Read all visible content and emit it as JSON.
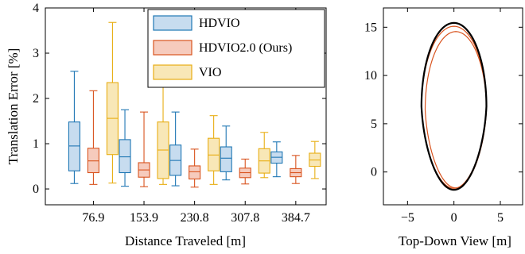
{
  "chart_data": [
    {
      "type": "box",
      "title": "",
      "xlabel": "Distance Traveled [m]",
      "ylabel": "Translation Error [%]",
      "ylim": [
        -0.35,
        4.0
      ],
      "yticks": [
        "0",
        "1",
        "2",
        "3",
        "4"
      ],
      "yticks_values": [
        0,
        1,
        2,
        3,
        4
      ],
      "categories": [
        "76.9",
        "153.9",
        "230.8",
        "307.8",
        "384.7"
      ],
      "legend_position": "top-right",
      "grid": false,
      "series": [
        {
          "name": "HDVIO",
          "color": "#1f77b4",
          "fill": "#c7dcef",
          "boxes": [
            {
              "min": 0.12,
              "q1": 0.4,
              "median": 0.95,
              "q3": 1.48,
              "max": 2.6
            },
            {
              "min": 0.06,
              "q1": 0.36,
              "median": 0.71,
              "q3": 1.09,
              "max": 1.75
            },
            {
              "min": 0.07,
              "q1": 0.3,
              "median": 0.63,
              "q3": 0.97,
              "max": 1.7
            },
            {
              "min": 0.2,
              "q1": 0.38,
              "median": 0.68,
              "q3": 0.93,
              "max": 1.39
            },
            {
              "min": 0.27,
              "q1": 0.57,
              "median": 0.7,
              "q3": 0.82,
              "max": 1.04
            }
          ]
        },
        {
          "name": "HDVIO2.0 (Ours)",
          "color": "#d9541f",
          "fill": "#f6cbbd",
          "boxes": [
            {
              "min": 0.1,
              "q1": 0.36,
              "median": 0.62,
              "q3": 0.9,
              "max": 2.17
            },
            {
              "min": 0.05,
              "q1": 0.26,
              "median": 0.42,
              "q3": 0.58,
              "max": 1.7
            },
            {
              "min": 0.04,
              "q1": 0.22,
              "median": 0.38,
              "q3": 0.51,
              "max": 0.88
            },
            {
              "min": 0.11,
              "q1": 0.25,
              "median": 0.36,
              "q3": 0.46,
              "max": 0.66
            },
            {
              "min": 0.12,
              "q1": 0.27,
              "median": 0.36,
              "q3": 0.45,
              "max": 0.74
            }
          ]
        },
        {
          "name": "VIO",
          "color": "#e8ae14",
          "fill": "#f8e7b7",
          "boxes": [
            {
              "min": 0.13,
              "q1": 0.76,
              "median": 1.56,
              "q3": 2.35,
              "max": 3.68
            },
            {
              "min": 0.1,
              "q1": 0.23,
              "median": 0.86,
              "q3": 1.48,
              "max": 2.62
            },
            {
              "min": 0.1,
              "q1": 0.4,
              "median": 0.75,
              "q3": 1.12,
              "max": 1.62
            },
            {
              "min": 0.25,
              "q1": 0.35,
              "median": 0.62,
              "q3": 0.89,
              "max": 1.25
            },
            {
              "min": 0.23,
              "q1": 0.5,
              "median": 0.64,
              "q3": 0.79,
              "max": 1.05
            }
          ]
        }
      ]
    },
    {
      "type": "line",
      "title": "",
      "xlabel": "Top-Down View [m]",
      "ylabel": "",
      "xlim": [
        -7.6,
        7.4
      ],
      "ylim": [
        -3.4,
        17.0
      ],
      "xticks": [
        "−5",
        "0",
        "5"
      ],
      "xticks_values": [
        -5,
        0,
        5
      ],
      "yticks": [
        "0",
        "5",
        "10",
        "15"
      ],
      "yticks_values": [
        0,
        5,
        10,
        15
      ],
      "grid": false,
      "series": [
        {
          "color": "#d9541f",
          "cx": 0.0,
          "cy": 6.7,
          "rx": 3.5,
          "ry": 8.4,
          "width": 1.2
        },
        {
          "color": "#d9541f",
          "cx": 0.2,
          "cy": 6.45,
          "rx": 3.3,
          "ry": 8.1,
          "width": 1.2
        },
        {
          "color": "#000000",
          "cx": 0.0,
          "cy": 6.8,
          "rx": 3.5,
          "ry": 8.65,
          "width": 2.2
        }
      ]
    }
  ]
}
